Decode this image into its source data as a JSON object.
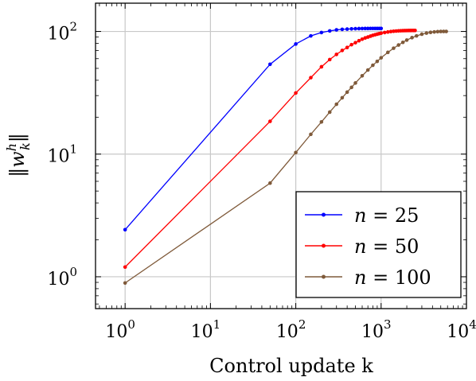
{
  "chart_data": {
    "type": "line",
    "xlabel": "Control update k",
    "ylabel": "||w_k^h||",
    "x_scale": "log",
    "y_scale": "log",
    "xlim": [
      0.45,
      10000
    ],
    "ylim": [
      0.55,
      170
    ],
    "grid": true,
    "legend_position": "bottom-right",
    "x_ticks": [
      {
        "value": 1,
        "base": "10",
        "exp": "0"
      },
      {
        "value": 10,
        "base": "10",
        "exp": "1"
      },
      {
        "value": 100,
        "base": "10",
        "exp": "2"
      },
      {
        "value": 1000,
        "base": "10",
        "exp": "3"
      },
      {
        "value": 10000,
        "base": "10",
        "exp": "4"
      }
    ],
    "y_ticks": [
      {
        "value": 1,
        "base": "10",
        "exp": "0"
      },
      {
        "value": 10,
        "base": "10",
        "exp": "1"
      },
      {
        "value": 100,
        "base": "10",
        "exp": "2"
      }
    ],
    "series": [
      {
        "name": "n = 25",
        "n_value": "25",
        "color": "#0000ff",
        "x": [
          1,
          50,
          100,
          150,
          200,
          250,
          300,
          350,
          400,
          450,
          500,
          550,
          600,
          650,
          700,
          750,
          800,
          850,
          900,
          950,
          1000
        ],
        "y": [
          2.42,
          54,
          79,
          92,
          98,
          101,
          103,
          104,
          104.5,
          105,
          105.3,
          105.5,
          105.6,
          105.7,
          105.7,
          105.8,
          105.8,
          105.8,
          105.8,
          105.8,
          105.8
        ]
      },
      {
        "name": "n = 50",
        "n_value": "50",
        "color": "#ff0000",
        "x": [
          1,
          50,
          100,
          150,
          200,
          250,
          300,
          350,
          400,
          450,
          500,
          550,
          600,
          650,
          700,
          750,
          800,
          850,
          900,
          950,
          1000,
          1100,
          1200,
          1300,
          1400,
          1500,
          1600,
          1700,
          1800,
          1900,
          2000,
          2100,
          2200,
          2300,
          2400,
          2500
        ],
        "y": [
          1.2,
          18.5,
          31.5,
          42,
          51.5,
          59,
          65,
          70,
          74,
          78,
          81,
          84,
          86.5,
          88.5,
          90,
          91.5,
          93,
          94,
          95,
          96,
          96.8,
          98,
          99,
          99.8,
          100.4,
          100.8,
          101.1,
          101.3,
          101.5,
          101.6,
          101.7,
          101.8,
          101.8,
          101.9,
          101.9,
          101.9
        ]
      },
      {
        "name": "n = 100",
        "n_value": "100",
        "color": "#7f5a3a",
        "x": [
          1,
          50,
          100,
          150,
          200,
          250,
          300,
          350,
          400,
          450,
          500,
          600,
          700,
          800,
          900,
          1000,
          1200,
          1400,
          1600,
          1800,
          2000,
          2300,
          2600,
          3000,
          3400,
          3800,
          4200,
          4600,
          5000,
          5400,
          5800
        ],
        "y": [
          0.89,
          5.8,
          10.3,
          14.5,
          18.3,
          22,
          25.5,
          28.8,
          32,
          35,
          38,
          43.5,
          48.5,
          53,
          57,
          61,
          67.5,
          73,
          77.5,
          81.5,
          85,
          89,
          92,
          95,
          97,
          98.3,
          99.1,
          99.6,
          99.9,
          100,
          100
        ]
      }
    ]
  }
}
